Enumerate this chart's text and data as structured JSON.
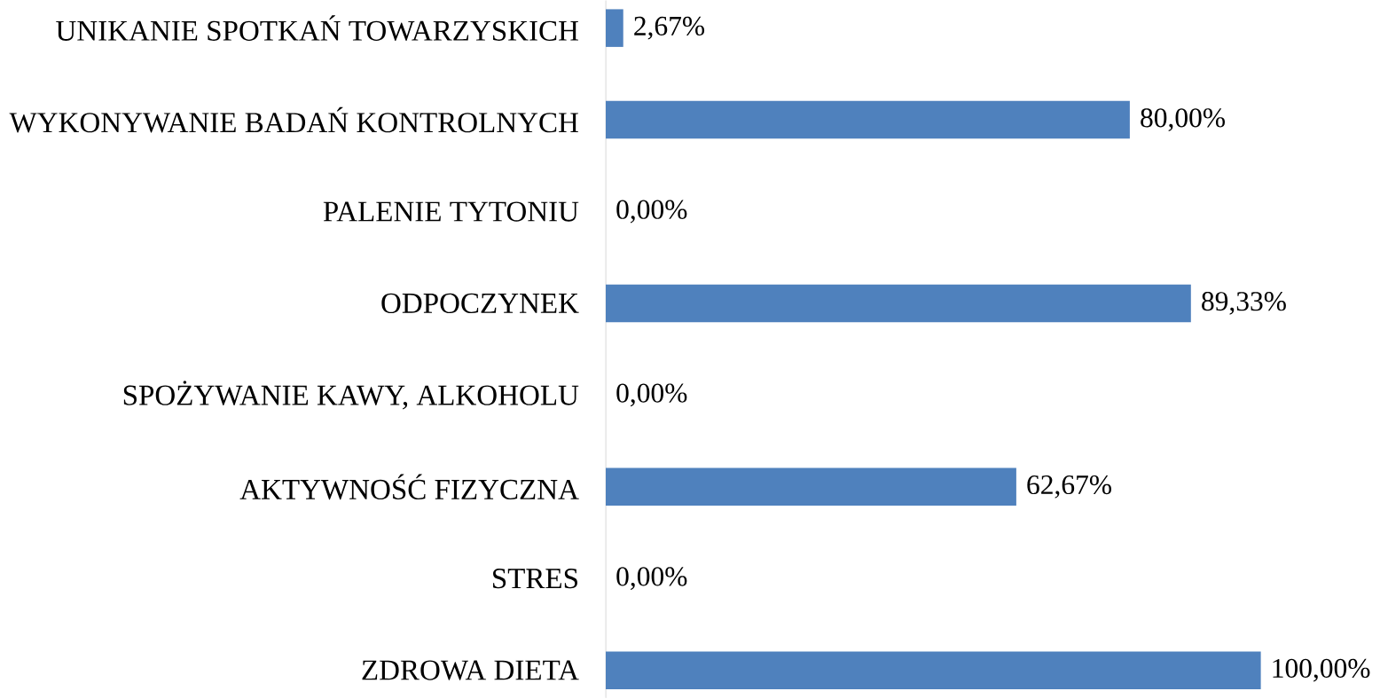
{
  "chart_data": {
    "type": "bar",
    "orientation": "horizontal",
    "categories": [
      "UNIKANIE SPOTKAŃ TOWARZYSKICH",
      "WYKONYWANIE BADAŃ KONTROLNYCH",
      "PALENIE TYTONIU",
      "ODPOCZYNEK",
      "SPOŻYWANIE KAWY, ALKOHOLU",
      "AKTYWNOŚĆ FIZYCZNA",
      "STRES",
      "ZDROWA DIETA"
    ],
    "values": [
      2.67,
      80.0,
      0.0,
      89.33,
      0.0,
      62.67,
      0.0,
      100.0
    ],
    "value_labels": [
      "2,67%",
      "80,00%",
      "0,00%",
      "89,33%",
      "0,00%",
      "62,67%",
      "0,00%",
      "100,00%"
    ],
    "color": "#4f81bd"
  }
}
